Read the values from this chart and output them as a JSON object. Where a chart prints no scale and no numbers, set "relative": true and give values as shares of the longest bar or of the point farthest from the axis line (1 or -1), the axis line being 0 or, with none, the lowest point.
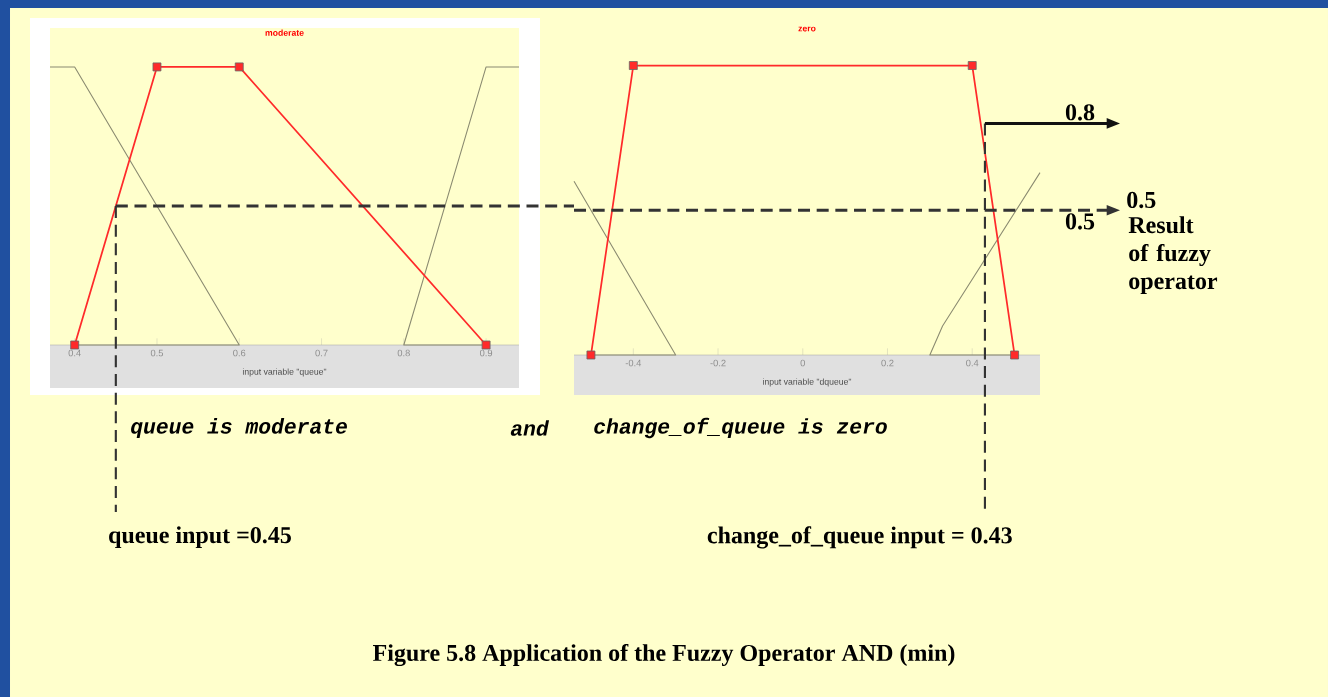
{
  "chart_data": [
    {
      "type": "line",
      "relative": true,
      "title": "moderate",
      "xlabel": "input variable \"queue\"",
      "xlim": [
        0.37,
        0.94
      ],
      "xticks": [
        0.4,
        0.5,
        0.6,
        0.7,
        0.8,
        0.9
      ],
      "series": [
        {
          "color": "#8a8a70",
          "marker": "none",
          "x": [
            0.37,
            0.4,
            0.6,
            0.4
          ],
          "values": [
            1,
            1,
            0,
            0
          ]
        },
        {
          "color": "#8a8a70",
          "marker": "none",
          "x": [
            0.9,
            0.8,
            0.9,
            0.94
          ],
          "values": [
            0,
            0,
            1,
            1
          ]
        },
        {
          "color": "#ff2a2a",
          "marker": "square",
          "x": [
            0.4,
            0.5,
            0.6,
            0.9
          ],
          "values": [
            0,
            1,
            1,
            0
          ]
        }
      ],
      "ref_lines": [
        {
          "axis": "x",
          "value": 0.45,
          "label": "queue input =0.45",
          "line_style": "dashed",
          "color": "#333333"
        },
        {
          "axis": "y",
          "value": 0.5,
          "line_style": "dashed",
          "color": "#333333"
        }
      ],
      "annotations": [
        "queue is moderate"
      ]
    },
    {
      "type": "line",
      "relative": true,
      "title": "zero",
      "xlabel": "input variable \"dqueue\"",
      "xlim": [
        -0.54,
        0.56
      ],
      "xticks": [
        -0.4,
        -0.2,
        0,
        0.2,
        0.4
      ],
      "series": [
        {
          "color": "#8a8a70",
          "marker": "none",
          "x": [
            -0.54,
            -0.3,
            -0.5
          ],
          "values": [
            0.6,
            0,
            0
          ]
        },
        {
          "color": "#8a8a70",
          "marker": "none",
          "x": [
            0.5,
            0.3,
            0.33,
            0.56
          ],
          "values": [
            0,
            0,
            0.1,
            0.63
          ]
        },
        {
          "color": "#ff2a2a",
          "marker": "square",
          "x": [
            -0.5,
            -0.4,
            0.4,
            0.5
          ],
          "values": [
            0,
            1,
            1,
            0
          ]
        }
      ],
      "ref_lines": [
        {
          "axis": "x",
          "value": 0.43,
          "label": "change_of_queue input = 0.43",
          "line_style": "dashed",
          "color": "#333333"
        },
        {
          "axis": "y",
          "value": 0.5,
          "label": "0.5",
          "line_style": "dashed",
          "color": "#333333"
        },
        {
          "axis": "y",
          "value": 0.8,
          "label": "0.8",
          "line_style": "solid",
          "color": "#111111"
        }
      ],
      "annotations": [
        "0.5",
        "Result of fuzzy operator",
        "and",
        "change_of_queue is zero",
        "Figure 5.8   Application of the Fuzzy Operator AND (min)"
      ]
    }
  ]
}
